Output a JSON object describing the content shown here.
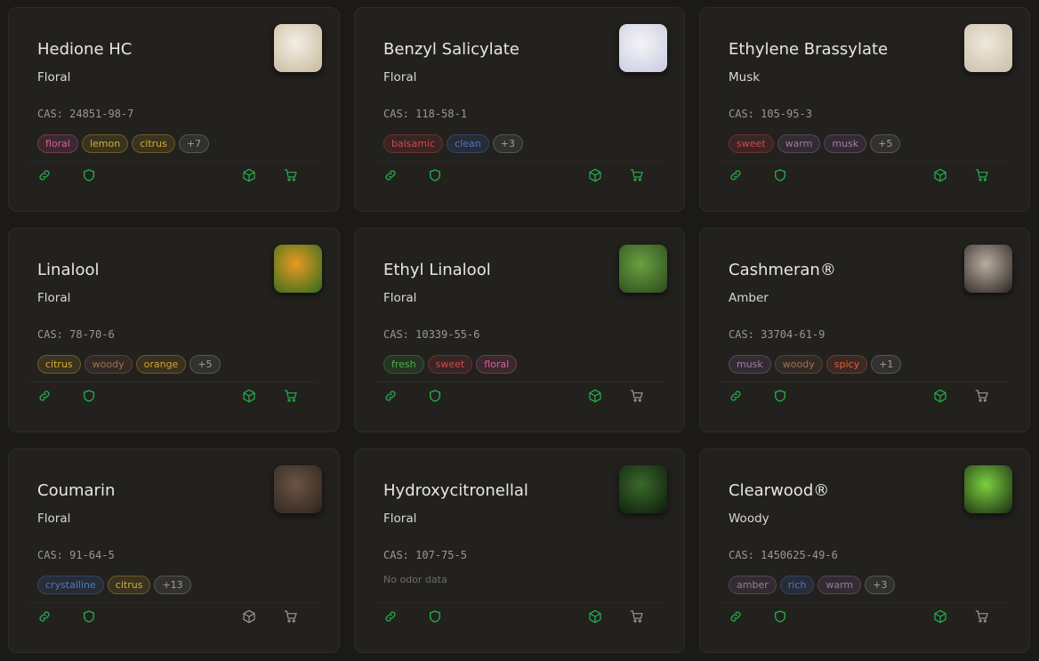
{
  "accent": "#22b04a",
  "muted_icon": "#9a9890",
  "cards": [
    {
      "name": "Hedione HC",
      "family": "Floral",
      "cas": "CAS: 24851-98-7",
      "tags": [
        {
          "t": "floral",
          "c": "#d9609a"
        },
        {
          "t": "lemon",
          "c": "#d4b030"
        },
        {
          "t": "citrus",
          "c": "#d4b030"
        },
        {
          "t": "+7",
          "c": "#a09e98"
        }
      ],
      "box_active": true,
      "cart_active": true,
      "img": [
        "#f2efe6",
        "#c9b89a"
      ]
    },
    {
      "name": "Benzyl Salicylate",
      "family": "Floral",
      "cas": "CAS: 118-58-1",
      "tags": [
        {
          "t": "balsamic",
          "c": "#d04848"
        },
        {
          "t": "clean",
          "c": "#4a78d0"
        },
        {
          "t": "+3",
          "c": "#a09e98"
        }
      ],
      "box_active": true,
      "cart_active": true,
      "img": [
        "#f4f4f6",
        "#c8cbe0"
      ]
    },
    {
      "name": "Ethylene Brassylate",
      "family": "Musk",
      "cas": "CAS: 105-95-3",
      "tags": [
        {
          "t": "sweet",
          "c": "#d04848"
        },
        {
          "t": "warm",
          "c": "#9a7aa8"
        },
        {
          "t": "musk",
          "c": "#a07ab0"
        },
        {
          "t": "+5",
          "c": "#a09e98"
        }
      ],
      "box_active": true,
      "cart_active": true,
      "img": [
        "#efe9dc",
        "#c8bda6"
      ]
    },
    {
      "name": "Linalool",
      "family": "Floral",
      "cas": "CAS: 78-70-6",
      "tags": [
        {
          "t": "citrus",
          "c": "#d4b030"
        },
        {
          "t": "woody",
          "c": "#a07050"
        },
        {
          "t": "orange",
          "c": "#d4a030"
        },
        {
          "t": "+5",
          "c": "#a09e98"
        }
      ],
      "box_active": true,
      "cart_active": true,
      "img": [
        "#e89a20",
        "#2e6a1e"
      ]
    },
    {
      "name": "Ethyl Linalool",
      "family": "Floral",
      "cas": "CAS: 10339-55-6",
      "tags": [
        {
          "t": "fresh",
          "c": "#4ab04a"
        },
        {
          "t": "sweet",
          "c": "#d04848"
        },
        {
          "t": "floral",
          "c": "#d9609a"
        }
      ],
      "box_active": true,
      "cart_active": false,
      "img": [
        "#6aa040",
        "#2c4a1c"
      ]
    },
    {
      "name": "Cashmeran®",
      "family": "Amber",
      "cas": "CAS: 33704-61-9",
      "tags": [
        {
          "t": "musk",
          "c": "#a07ab0"
        },
        {
          "t": "woody",
          "c": "#a07050"
        },
        {
          "t": "spicy",
          "c": "#e06040"
        },
        {
          "t": "+1",
          "c": "#a09e98"
        }
      ],
      "box_active": true,
      "cart_active": false,
      "img": [
        "#b8ada0",
        "#2a2420"
      ]
    },
    {
      "name": "Coumarin",
      "family": "Floral",
      "cas": "CAS: 91-64-5",
      "tags": [
        {
          "t": "crystalline",
          "c": "#4a78d0"
        },
        {
          "t": "citrus",
          "c": "#d4b030"
        },
        {
          "t": "+13",
          "c": "#a09e98"
        }
      ],
      "box_active": false,
      "cart_active": false,
      "img": [
        "#6a5444",
        "#2e241c"
      ]
    },
    {
      "name": "Hydroxycitronellal",
      "family": "Floral",
      "cas": "CAS: 107-75-5",
      "tags": [],
      "no_odor": "No odor data",
      "box_active": true,
      "cart_active": false,
      "img": [
        "#3a6a2a",
        "#0e1a0c"
      ]
    },
    {
      "name": "Clearwood®",
      "family": "Woody",
      "cas": "CAS: 1450625-49-6",
      "tags": [
        {
          "t": "amber",
          "c": "#9a7aa8"
        },
        {
          "t": "rich",
          "c": "#4a78d0"
        },
        {
          "t": "warm",
          "c": "#9a7aa8"
        },
        {
          "t": "+3",
          "c": "#a09e98"
        }
      ],
      "box_active": true,
      "cart_active": false,
      "img": [
        "#7ad040",
        "#1a2a10"
      ]
    }
  ]
}
